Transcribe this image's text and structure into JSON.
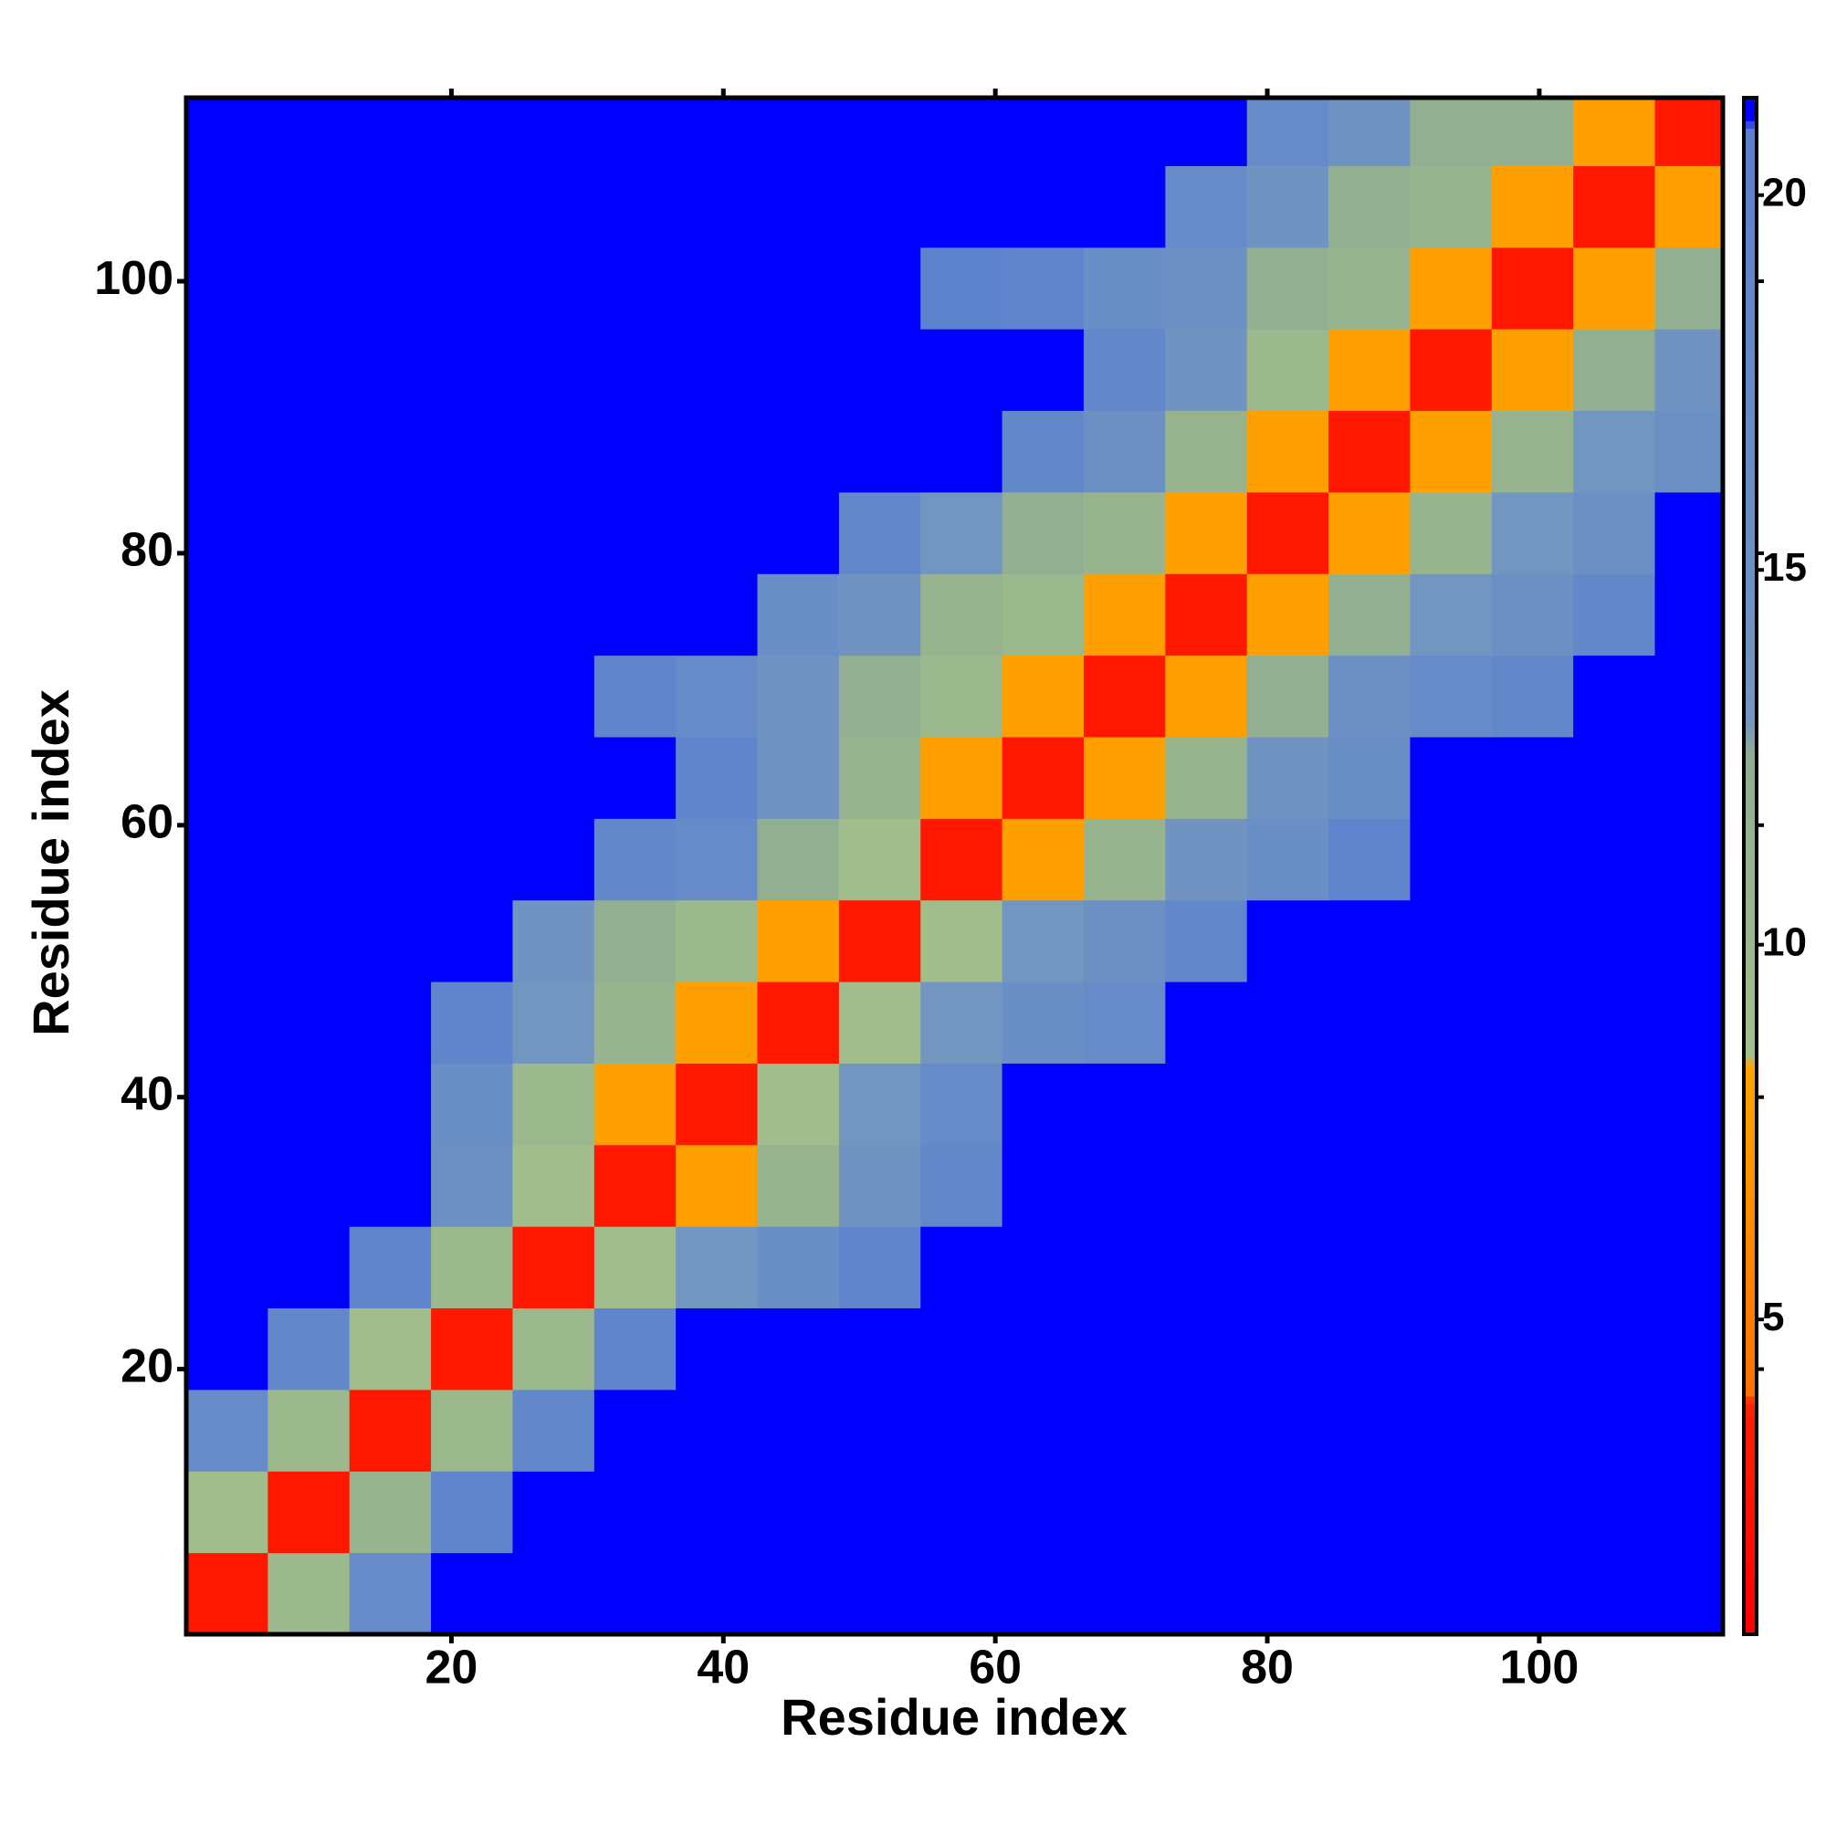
{
  "chart_data": {
    "type": "heatmap",
    "x_label": "Residue index",
    "y_label": "Residue index",
    "xlim": [
      0.5,
      113.5
    ],
    "ylim": [
      0.5,
      113.5
    ],
    "xticks": [
      20,
      40,
      60,
      80,
      100
    ],
    "yticks": [
      20,
      40,
      60,
      80,
      100
    ],
    "xbins": [
      0.5,
      6.5,
      12.5,
      18.5,
      24.5,
      30.5,
      36.5,
      42.5,
      48.5,
      54.5,
      60.5,
      66.5,
      72.5,
      78.5,
      84.5,
      90.5,
      96.5,
      102.5,
      108.5,
      113.5
    ],
    "ybins": [
      0.5,
      6.5,
      12.5,
      18.5,
      24.5,
      30.5,
      36.5,
      42.5,
      48.5,
      54.5,
      60.5,
      66.5,
      72.5,
      78.5,
      84.5,
      90.5,
      96.5,
      102.5,
      108.5,
      113.5
    ],
    "zlim": [
      0.8,
      21.3
    ],
    "zticks": [
      5,
      10,
      15,
      20
    ],
    "colorscale": [
      [
        0.8,
        "#ff0000"
      ],
      [
        3.9,
        "#ff2000"
      ],
      [
        4.0,
        "#ff7000"
      ],
      [
        8.4,
        "#ffa500"
      ],
      [
        8.5,
        "#a3bf8a"
      ],
      [
        12.5,
        "#8fae92"
      ],
      [
        13.0,
        "#7396c0"
      ],
      [
        20.9,
        "#5a80d0"
      ],
      [
        21.0,
        "#0000ff"
      ],
      [
        21.3,
        "#0000ff"
      ]
    ],
    "values": [
      [
        3,
        10,
        17,
        21,
        21,
        21,
        21,
        21,
        21,
        21,
        21,
        21,
        21,
        21,
        21,
        21,
        21,
        21,
        21
      ],
      [
        9,
        3,
        11,
        19,
        21,
        21,
        21,
        21,
        21,
        21,
        21,
        21,
        21,
        21,
        21,
        21,
        21,
        21,
        21
      ],
      [
        17,
        10,
        3,
        10,
        18,
        21,
        21,
        21,
        21,
        21,
        21,
        21,
        21,
        21,
        21,
        21,
        21,
        21,
        21
      ],
      [
        21,
        18,
        9,
        3,
        10,
        19,
        21,
        21,
        21,
        21,
        21,
        21,
        21,
        21,
        21,
        21,
        21,
        21,
        21
      ],
      [
        21,
        21,
        19,
        10,
        3,
        9,
        13,
        16,
        19,
        21,
        21,
        21,
        21,
        21,
        21,
        21,
        21,
        21,
        21
      ],
      [
        21,
        21,
        21,
        15,
        9,
        3,
        8,
        11,
        14,
        18,
        21,
        21,
        21,
        21,
        21,
        21,
        21,
        21,
        21
      ],
      [
        21,
        21,
        21,
        16,
        10,
        8,
        3,
        9,
        13,
        17,
        21,
        21,
        21,
        21,
        21,
        21,
        21,
        21,
        21
      ],
      [
        21,
        21,
        21,
        19,
        13,
        11,
        8,
        3,
        9,
        13,
        16,
        17,
        21,
        21,
        21,
        21,
        21,
        21,
        21
      ],
      [
        21,
        21,
        21,
        21,
        14,
        12,
        10,
        8,
        3,
        9,
        13,
        15,
        18,
        21,
        21,
        21,
        21,
        21,
        21
      ],
      [
        21,
        21,
        21,
        21,
        21,
        18,
        17,
        12,
        9,
        3,
        8,
        11,
        14,
        16,
        19,
        21,
        21,
        21,
        21
      ],
      [
        21,
        21,
        21,
        21,
        21,
        21,
        19,
        14,
        11,
        8,
        3,
        8,
        11,
        14,
        16,
        21,
        21,
        21,
        21
      ],
      [
        21,
        21,
        21,
        21,
        21,
        19,
        17,
        14,
        12,
        10,
        8,
        3,
        8,
        12,
        15,
        17,
        18,
        21,
        21
      ],
      [
        21,
        21,
        21,
        21,
        21,
        21,
        21,
        16,
        14,
        11,
        10,
        8,
        3,
        8,
        12,
        13,
        15,
        18,
        21
      ],
      [
        21,
        21,
        21,
        21,
        21,
        21,
        21,
        21,
        18,
        13,
        12,
        11,
        8,
        3,
        8,
        11,
        13,
        15,
        21
      ],
      [
        21,
        21,
        21,
        21,
        21,
        21,
        21,
        21,
        21,
        21,
        18,
        15,
        11,
        8,
        3,
        8,
        11,
        13,
        15
      ],
      [
        21,
        21,
        21,
        21,
        21,
        21,
        21,
        21,
        21,
        21,
        21,
        18,
        14,
        10,
        8,
        3,
        8,
        12,
        14
      ],
      [
        21,
        21,
        21,
        21,
        21,
        21,
        21,
        21,
        21,
        20,
        19,
        16,
        15,
        12,
        11,
        8,
        3,
        8,
        12
      ],
      [
        21,
        21,
        21,
        21,
        21,
        21,
        21,
        21,
        21,
        21,
        21,
        21,
        17,
        14,
        12,
        11,
        8,
        3,
        8
      ],
      [
        21,
        21,
        21,
        21,
        21,
        21,
        21,
        21,
        21,
        21,
        21,
        21,
        21,
        17,
        14,
        12,
        12,
        8,
        3
      ]
    ]
  }
}
